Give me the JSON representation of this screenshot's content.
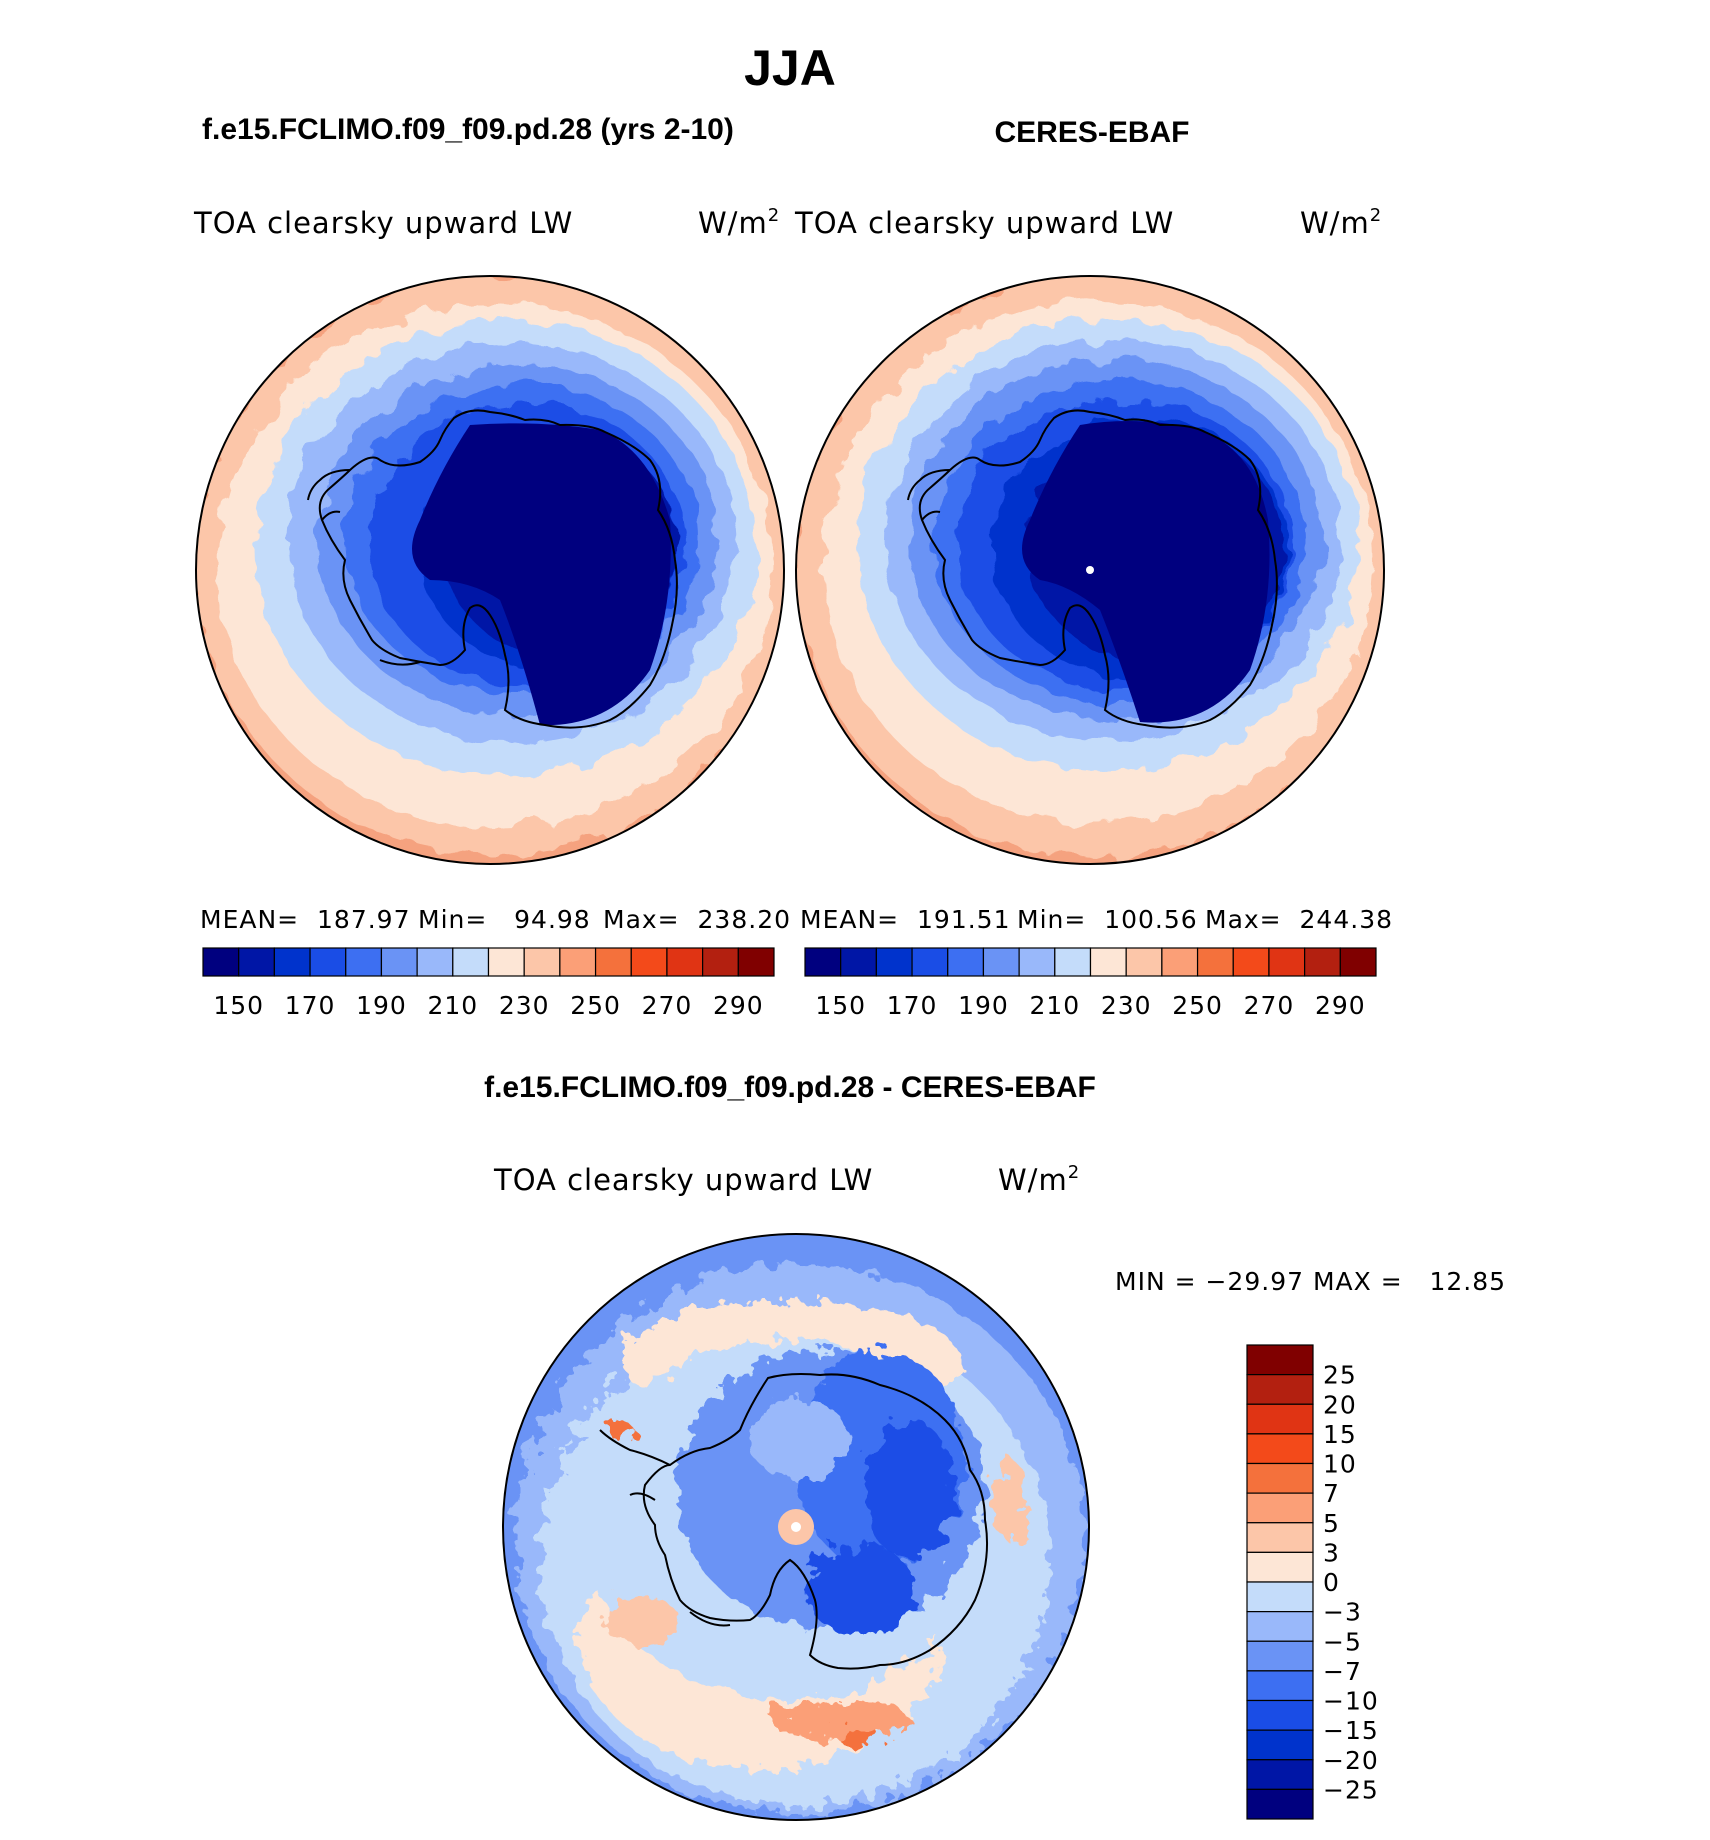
{
  "figure": {
    "season": "JJA",
    "left_case": "f.e15.FCLIMO.f09_f09.pd.28 (yrs 2-10)",
    "right_case": "CERES-EBAF",
    "diff_case": "f.e15.FCLIMO.f09_f09.pd.28 - CERES-EBAF"
  },
  "panels": {
    "model": {
      "variable": "TOA clearsky upward LW",
      "units": "W/m",
      "units_exp": "2",
      "stats": {
        "mean": "MEAN=  187.97",
        "min": "Min=   94.98",
        "max": "Max=  238.20"
      }
    },
    "obs": {
      "variable": "TOA clearsky upward LW",
      "units": "W/m",
      "units_exp": "2",
      "stats": {
        "mean": "MEAN=  191.51",
        "min": "Min=  100.56",
        "max": "Max=  244.38"
      }
    },
    "diff": {
      "variable": "TOA clearsky upward LW",
      "units": "W/m",
      "units_exp": "2",
      "minmax": "MIN = −29.97 MAX =   12.85"
    }
  },
  "abs_colorbar": {
    "colors": [
      "#00007f",
      "#0016a6",
      "#0033cc",
      "#1a4de6",
      "#3d6ff2",
      "#6a93f5",
      "#99b8fa",
      "#c4dcfa",
      "#fde6d6",
      "#fcc6a9",
      "#fb9f77",
      "#f4713c",
      "#f34a1a",
      "#e03414",
      "#b32010",
      "#800000"
    ],
    "labels": [
      "150",
      "170",
      "190",
      "210",
      "230",
      "250",
      "270",
      "290"
    ]
  },
  "diff_colorbar": {
    "colors": [
      "#00007f",
      "#0016a6",
      "#0033cc",
      "#1a4de6",
      "#3d6ff2",
      "#6a93f5",
      "#99b8fa",
      "#c4dcfa",
      "#fde6d6",
      "#fcc6a9",
      "#fb9f77",
      "#f4713c",
      "#f34a1a",
      "#e03414",
      "#b32010",
      "#800000"
    ],
    "labels": [
      "25",
      "20",
      "15",
      "10",
      "7",
      "5",
      "3",
      "0",
      "−3",
      "−5",
      "−7",
      "−10",
      "−15",
      "−20",
      "−25"
    ]
  }
}
